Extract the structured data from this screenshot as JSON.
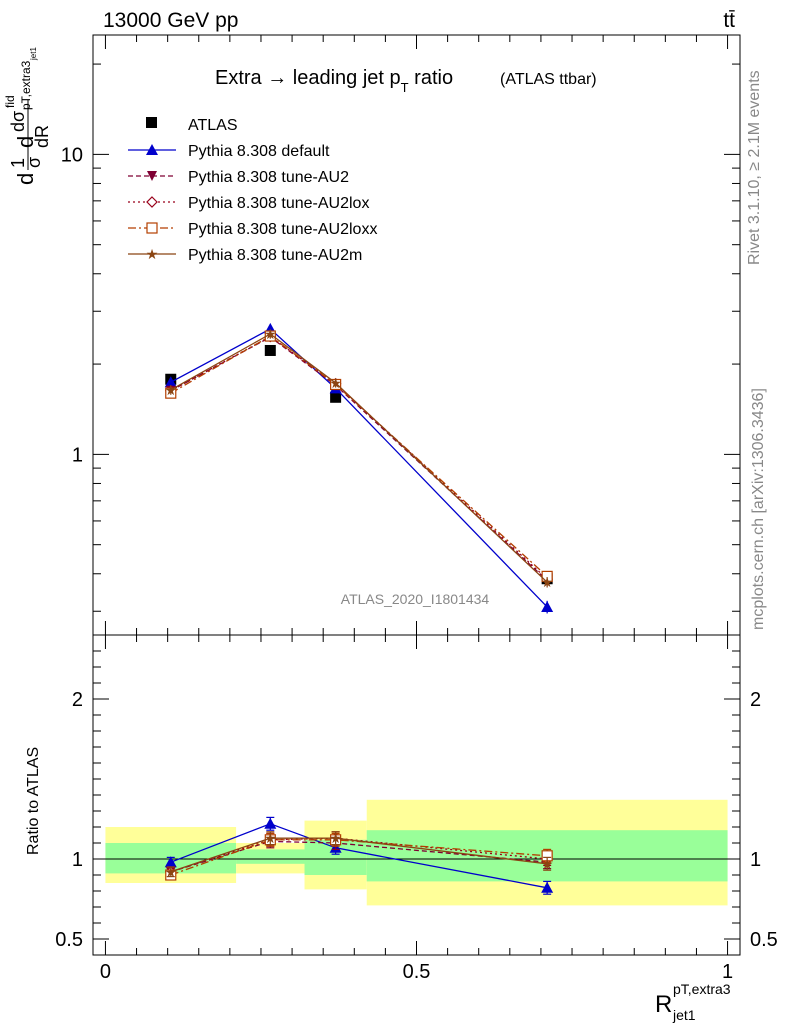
{
  "header": {
    "left": "13000 GeV pp",
    "right": "tt̄"
  },
  "side": {
    "rivet": "Rivet 3.1.10, ≥ 2.1M events",
    "mcplots": "mcplots.cern.ch [arXiv:1306.3436]"
  },
  "plot_title": {
    "main": "Extra → leading jet p",
    "sub": "T",
    "tail": " ratio",
    "note": "(ATLAS ttbar)"
  },
  "analysis_tag": "ATLAS_2020_I1801434",
  "ylabel_main": {
    "d1": "d",
    "frac_top": "1",
    "frac_bot": "σ",
    "d2": "d",
    "sigma": "dσ",
    "sup": "fid",
    "sub": "pT,extra3",
    "subsub": "jet1",
    "dR": "dR"
  },
  "ylabel_ratio": "Ratio to ATLAS",
  "xlabel": {
    "base": "R",
    "sup": "pT,extra3",
    "sub": "jet1"
  },
  "colors": {
    "atlas": "#000000",
    "default": "#0000cc",
    "au2": "#7f0033",
    "au2lox": "#99001a",
    "au2loxx": "#b33f00",
    "au2m": "#8b4513",
    "band_inner": "#99ff99",
    "band_outer": "#ffff99"
  },
  "chart_data": [
    {
      "type": "line",
      "panel": "main",
      "ylog": true,
      "xlim": [
        -0.02,
        1.02
      ],
      "ylim": [
        0.25,
        25
      ],
      "ytick_labels": [
        "1",
        "10"
      ],
      "x": [
        0.105,
        0.265,
        0.37,
        0.71
      ],
      "xerr_bins": [
        [
          0.0,
          0.21
        ],
        [
          0.21,
          0.32
        ],
        [
          0.32,
          0.42
        ],
        [
          0.42,
          1.0
        ]
      ],
      "legend": [
        "ATLAS",
        "Pythia 8.308 default",
        "Pythia 8.308 tune-AU2",
        "Pythia 8.308 tune-AU2lox",
        "Pythia 8.308 tune-AU2loxx",
        "Pythia 8.308 tune-AU2m"
      ],
      "series": [
        {
          "name": "ATLAS",
          "values": [
            1.78,
            2.22,
            1.55,
            0.385
          ]
        },
        {
          "name": "Pythia 8.308 default",
          "values": [
            1.74,
            2.62,
            1.66,
            0.31
          ],
          "err": [
            0.06,
            0.09,
            0.06,
            0.015
          ]
        },
        {
          "name": "Pythia 8.308 tune-AU2",
          "values": [
            1.63,
            2.46,
            1.7,
            0.38
          ],
          "err": [
            0.06,
            0.09,
            0.06,
            0.015
          ]
        },
        {
          "name": "Pythia 8.308 tune-AU2lox",
          "values": [
            1.63,
            2.47,
            1.72,
            0.384
          ],
          "err": [
            0.06,
            0.09,
            0.06,
            0.015
          ]
        },
        {
          "name": "Pythia 8.308 tune-AU2loxx",
          "values": [
            1.6,
            2.48,
            1.71,
            0.392
          ],
          "err": [
            0.06,
            0.09,
            0.06,
            0.015
          ]
        },
        {
          "name": "Pythia 8.308 tune-AU2m",
          "values": [
            1.64,
            2.52,
            1.73,
            0.375
          ],
          "err": [
            0.06,
            0.09,
            0.06,
            0.015
          ]
        }
      ]
    },
    {
      "type": "line",
      "panel": "ratio",
      "xlim": [
        -0.02,
        1.02
      ],
      "ylim": [
        0.4,
        2.4
      ],
      "ytick_labels": [
        "0.5",
        "1",
        "2"
      ],
      "xtick_labels": [
        "0",
        "0.5",
        "1"
      ],
      "x": [
        0.105,
        0.265,
        0.37,
        0.71
      ],
      "bands": [
        {
          "x0": 0.0,
          "x1": 0.21,
          "inner": [
            0.91,
            1.1
          ],
          "outer": [
            0.85,
            1.2
          ]
        },
        {
          "x0": 0.21,
          "x1": 0.32,
          "inner": [
            0.97,
            1.06
          ],
          "outer": [
            0.91,
            1.1
          ]
        },
        {
          "x0": 0.32,
          "x1": 0.42,
          "inner": [
            0.9,
            1.12
          ],
          "outer": [
            0.81,
            1.24
          ]
        },
        {
          "x0": 0.42,
          "x1": 1.0,
          "inner": [
            0.86,
            1.18
          ],
          "outer": [
            0.71,
            1.37
          ]
        }
      ],
      "series": [
        {
          "name": "Pythia 8.308 default",
          "values": [
            0.98,
            1.22,
            1.07,
            0.82
          ],
          "err": [
            0.03,
            0.04,
            0.04,
            0.04
          ]
        },
        {
          "name": "Pythia 8.308 tune-AU2",
          "values": [
            0.92,
            1.11,
            1.1,
            0.98
          ],
          "err": [
            0.03,
            0.04,
            0.04,
            0.04
          ]
        },
        {
          "name": "Pythia 8.308 tune-AU2lox",
          "values": [
            0.92,
            1.12,
            1.13,
            1.0
          ],
          "err": [
            0.03,
            0.04,
            0.04,
            0.04
          ]
        },
        {
          "name": "Pythia 8.308 tune-AU2loxx",
          "values": [
            0.9,
            1.12,
            1.12,
            1.02
          ],
          "err": [
            0.03,
            0.04,
            0.04,
            0.04
          ]
        },
        {
          "name": "Pythia 8.308 tune-AU2m",
          "values": [
            0.92,
            1.13,
            1.13,
            0.97
          ],
          "err": [
            0.03,
            0.04,
            0.04,
            0.04
          ]
        }
      ]
    }
  ]
}
